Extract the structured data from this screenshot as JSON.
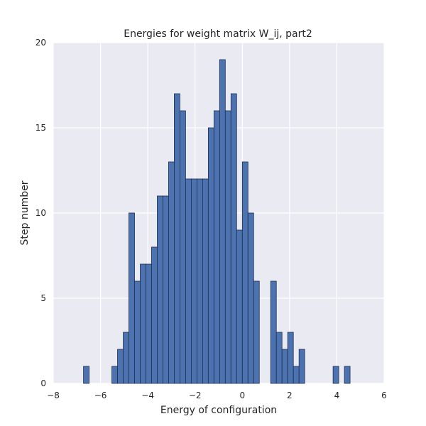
{
  "chart_data": {
    "type": "bar",
    "title": "Energies for weight matrix W_ij, part2",
    "xlabel": "Energy of configuration",
    "ylabel": "Step number",
    "xlim": [
      -8,
      6
    ],
    "ylim": [
      0,
      20
    ],
    "xticks": [
      -8,
      -6,
      -4,
      -2,
      0,
      2,
      4,
      6
    ],
    "xtick_labels": [
      "−8",
      "−6",
      "−4",
      "−2",
      "0",
      "2",
      "4",
      "6"
    ],
    "yticks": [
      0,
      5,
      10,
      15,
      20
    ],
    "ytick_labels": [
      "0",
      "5",
      "10",
      "15",
      "20"
    ],
    "grid": true,
    "bar_color": "#4c72b0",
    "background_color": "#eaeaf2",
    "bins": [
      {
        "x0": -6.72,
        "x1": -6.48,
        "count": 1
      },
      {
        "x0": -5.52,
        "x1": -5.28,
        "count": 1
      },
      {
        "x0": -5.28,
        "x1": -5.04,
        "count": 2
      },
      {
        "x0": -5.04,
        "x1": -4.8,
        "count": 3
      },
      {
        "x0": -4.8,
        "x1": -4.56,
        "count": 10
      },
      {
        "x0": -4.56,
        "x1": -4.32,
        "count": 6
      },
      {
        "x0": -4.32,
        "x1": -4.08,
        "count": 7
      },
      {
        "x0": -4.08,
        "x1": -3.84,
        "count": 7
      },
      {
        "x0": -3.84,
        "x1": -3.6,
        "count": 8
      },
      {
        "x0": -3.6,
        "x1": -3.36,
        "count": 11
      },
      {
        "x0": -3.36,
        "x1": -3.12,
        "count": 11
      },
      {
        "x0": -3.12,
        "x1": -2.88,
        "count": 13
      },
      {
        "x0": -2.88,
        "x1": -2.64,
        "count": 17
      },
      {
        "x0": -2.64,
        "x1": -2.4,
        "count": 16
      },
      {
        "x0": -2.4,
        "x1": -2.16,
        "count": 12
      },
      {
        "x0": -2.16,
        "x1": -1.92,
        "count": 12
      },
      {
        "x0": -1.92,
        "x1": -1.68,
        "count": 12
      },
      {
        "x0": -1.68,
        "x1": -1.44,
        "count": 12
      },
      {
        "x0": -1.44,
        "x1": -1.2,
        "count": 15
      },
      {
        "x0": -1.2,
        "x1": -0.96,
        "count": 16
      },
      {
        "x0": -0.96,
        "x1": -0.72,
        "count": 19
      },
      {
        "x0": -0.72,
        "x1": -0.48,
        "count": 16
      },
      {
        "x0": -0.48,
        "x1": -0.24,
        "count": 17
      },
      {
        "x0": -0.24,
        "x1": 0.0,
        "count": 9
      },
      {
        "x0": 0.0,
        "x1": 0.24,
        "count": 13
      },
      {
        "x0": 0.24,
        "x1": 0.48,
        "count": 10
      },
      {
        "x0": 0.48,
        "x1": 0.72,
        "count": 6
      },
      {
        "x0": 1.2,
        "x1": 1.44,
        "count": 6
      },
      {
        "x0": 1.44,
        "x1": 1.68,
        "count": 3
      },
      {
        "x0": 1.68,
        "x1": 1.92,
        "count": 2
      },
      {
        "x0": 1.92,
        "x1": 2.16,
        "count": 3
      },
      {
        "x0": 2.16,
        "x1": 2.4,
        "count": 1
      },
      {
        "x0": 2.4,
        "x1": 2.64,
        "count": 2
      },
      {
        "x0": 3.84,
        "x1": 4.08,
        "count": 1
      },
      {
        "x0": 4.32,
        "x1": 4.56,
        "count": 1
      }
    ]
  }
}
